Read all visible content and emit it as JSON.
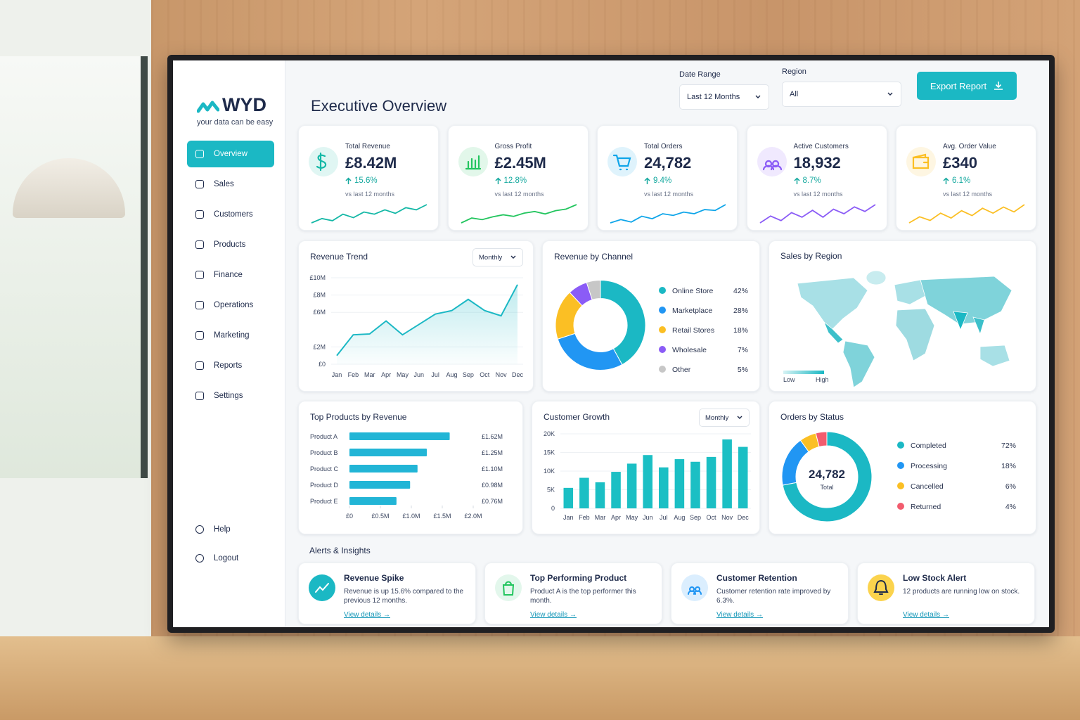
{
  "brand": {
    "name": "WYD",
    "tagline": "your data can be easy"
  },
  "nav": {
    "items": [
      "Overview",
      "Sales",
      "Customers",
      "Products",
      "Finance",
      "Operations",
      "Marketing",
      "Reports",
      "Settings"
    ],
    "active": 0,
    "footer": [
      "Help",
      "Logout"
    ]
  },
  "header": {
    "title": "Executive Overview",
    "date_range_label": "Date Range",
    "date_range": "Last 12 Months",
    "region_label": "Region",
    "region": "All",
    "export": "Export Report"
  },
  "kpis": [
    {
      "label": "Total Revenue",
      "value": "£8.42M",
      "change": "15.6%",
      "note": "vs last 12 months",
      "color": "#14b8a6",
      "sparkline": [
        3,
        4,
        3.5,
        5,
        4.2,
        5.5,
        5,
        6,
        5.2,
        6.5,
        6,
        7.2
      ]
    },
    {
      "label": "Gross Profit",
      "value": "£2.45M",
      "change": "12.8%",
      "note": "vs last 12 months",
      "color": "#22c55e",
      "sparkline": [
        3,
        4.2,
        3.8,
        4.5,
        5,
        4.6,
        5.4,
        5.8,
        5.2,
        6,
        6.4,
        7.5
      ]
    },
    {
      "label": "Total Orders",
      "value": "24,782",
      "change": "9.4%",
      "note": "vs last 12 months",
      "color": "#0ea5e9",
      "sparkline": [
        3,
        3.8,
        3.2,
        4.6,
        4,
        5.2,
        4.8,
        5.6,
        5.2,
        6.2,
        6,
        7.4
      ]
    },
    {
      "label": "Active Customers",
      "value": "18,932",
      "change": "8.7%",
      "note": "vs last 12 months",
      "color": "#8b5cf6",
      "sparkline": [
        4,
        5.2,
        4.4,
        5.8,
        5,
        6.2,
        5,
        6.4,
        5.6,
        6.8,
        6,
        7.2
      ]
    },
    {
      "label": "Avg. Order Value",
      "value": "£340",
      "change": "6.1%",
      "note": "vs last 12 months",
      "color": "#fbbf24",
      "sparkline": [
        4,
        5,
        4.4,
        5.6,
        4.8,
        6,
        5.2,
        6.4,
        5.6,
        6.6,
        5.8,
        7
      ]
    }
  ],
  "region_map": {
    "title": "Sales by Region",
    "legend_low": "Low",
    "legend_high": "High"
  },
  "chart_data": [
    {
      "type": "line",
      "title": "Revenue Trend",
      "period": "Monthly",
      "color": "#1bb8c4",
      "categories": [
        "Jan",
        "Feb",
        "Mar",
        "Apr",
        "May",
        "Jun",
        "Jul",
        "Aug",
        "Sep",
        "Oct",
        "Nov",
        "Dec"
      ],
      "values": [
        1.0,
        3.4,
        3.5,
        5.0,
        3.4,
        4.6,
        5.8,
        6.2,
        7.5,
        6.2,
        5.6,
        9.2
      ],
      "ylim": [
        0,
        10
      ],
      "yticks": [
        {
          "value": 0,
          "label": "£0"
        },
        {
          "value": 2,
          "label": "£2M"
        },
        {
          "value": 6,
          "label": "£6M"
        },
        {
          "value": 8,
          "label": "£8M"
        },
        {
          "value": 10,
          "label": "£10M"
        }
      ],
      "grid": true
    },
    {
      "type": "donut",
      "title": "Revenue by Channel",
      "categories": [
        "Online Store",
        "Marketplace",
        "Retail Stores",
        "Wholesale",
        "Other"
      ],
      "values": [
        42,
        28,
        18,
        7,
        5
      ],
      "value_labels": [
        "42%",
        "28%",
        "18%",
        "7%",
        "5%"
      ],
      "colors": [
        "#1bb8c4",
        "#2196f3",
        "#fbbf24",
        "#8b5cf6",
        "#c7c7c7"
      ]
    },
    {
      "type": "bar",
      "orientation": "horizontal",
      "title": "Top Products by Revenue",
      "color": "#22b5d6",
      "categories": [
        "Product A",
        "Product B",
        "Product C",
        "Product D",
        "Product E"
      ],
      "values": [
        1.62,
        1.25,
        1.1,
        0.98,
        0.76
      ],
      "value_labels": [
        "£1.62M",
        "£1.25M",
        "£1.10M",
        "£0.98M",
        "£0.76M"
      ],
      "xlim": [
        0,
        2
      ],
      "xticks": [
        {
          "value": 0,
          "label": "£0"
        },
        {
          "value": 0.5,
          "label": "£0.5M"
        },
        {
          "value": 1.0,
          "label": "£1.0M"
        },
        {
          "value": 1.5,
          "label": "£1.5M"
        },
        {
          "value": 2.0,
          "label": "£2.0M"
        }
      ]
    },
    {
      "type": "bar",
      "title": "Customer Growth",
      "period": "Monthly",
      "color": "#1bbfc4",
      "categories": [
        "Jan",
        "Feb",
        "Mar",
        "Apr",
        "May",
        "Jun",
        "Jul",
        "Aug",
        "Sep",
        "Oct",
        "Nov",
        "Dec"
      ],
      "values": [
        5500,
        8200,
        7000,
        9800,
        12000,
        14300,
        11000,
        13200,
        12500,
        13800,
        18500,
        16500
      ],
      "ylim": [
        0,
        20000
      ],
      "yticks": [
        0,
        {
          "value": 5000,
          "label": "5K"
        },
        {
          "value": 10000,
          "label": "10K"
        },
        {
          "value": 15000,
          "label": "15K"
        },
        {
          "value": 20000,
          "label": "20K"
        }
      ],
      "grid": true
    },
    {
      "type": "donut",
      "title": "Orders by Status",
      "center_label": "24,782",
      "center_sublabel": "Total",
      "categories": [
        "Completed",
        "Processing",
        "Cancelled",
        "Returned"
      ],
      "values": [
        72,
        18,
        6,
        4
      ],
      "value_labels": [
        "72%",
        "18%",
        "6%",
        "4%"
      ],
      "colors": [
        "#1bb8c4",
        "#2196f3",
        "#fbbf24",
        "#f25c6e"
      ]
    }
  ],
  "alerts": {
    "title": "Alerts & Insights",
    "items": [
      {
        "title": "Revenue Spike",
        "text": "Revenue is up 15.6% compared to the previous 12 months.",
        "link": "View details →"
      },
      {
        "title": "Top Performing Product",
        "text": "Product A is the top performer this month.",
        "link": "View details →"
      },
      {
        "title": "Customer Retention",
        "text": "Customer retention rate improved by 6.3%.",
        "link": "View details →"
      },
      {
        "title": "Low Stock Alert",
        "text": "12 products are running low on stock.",
        "link": "View details →"
      }
    ]
  }
}
